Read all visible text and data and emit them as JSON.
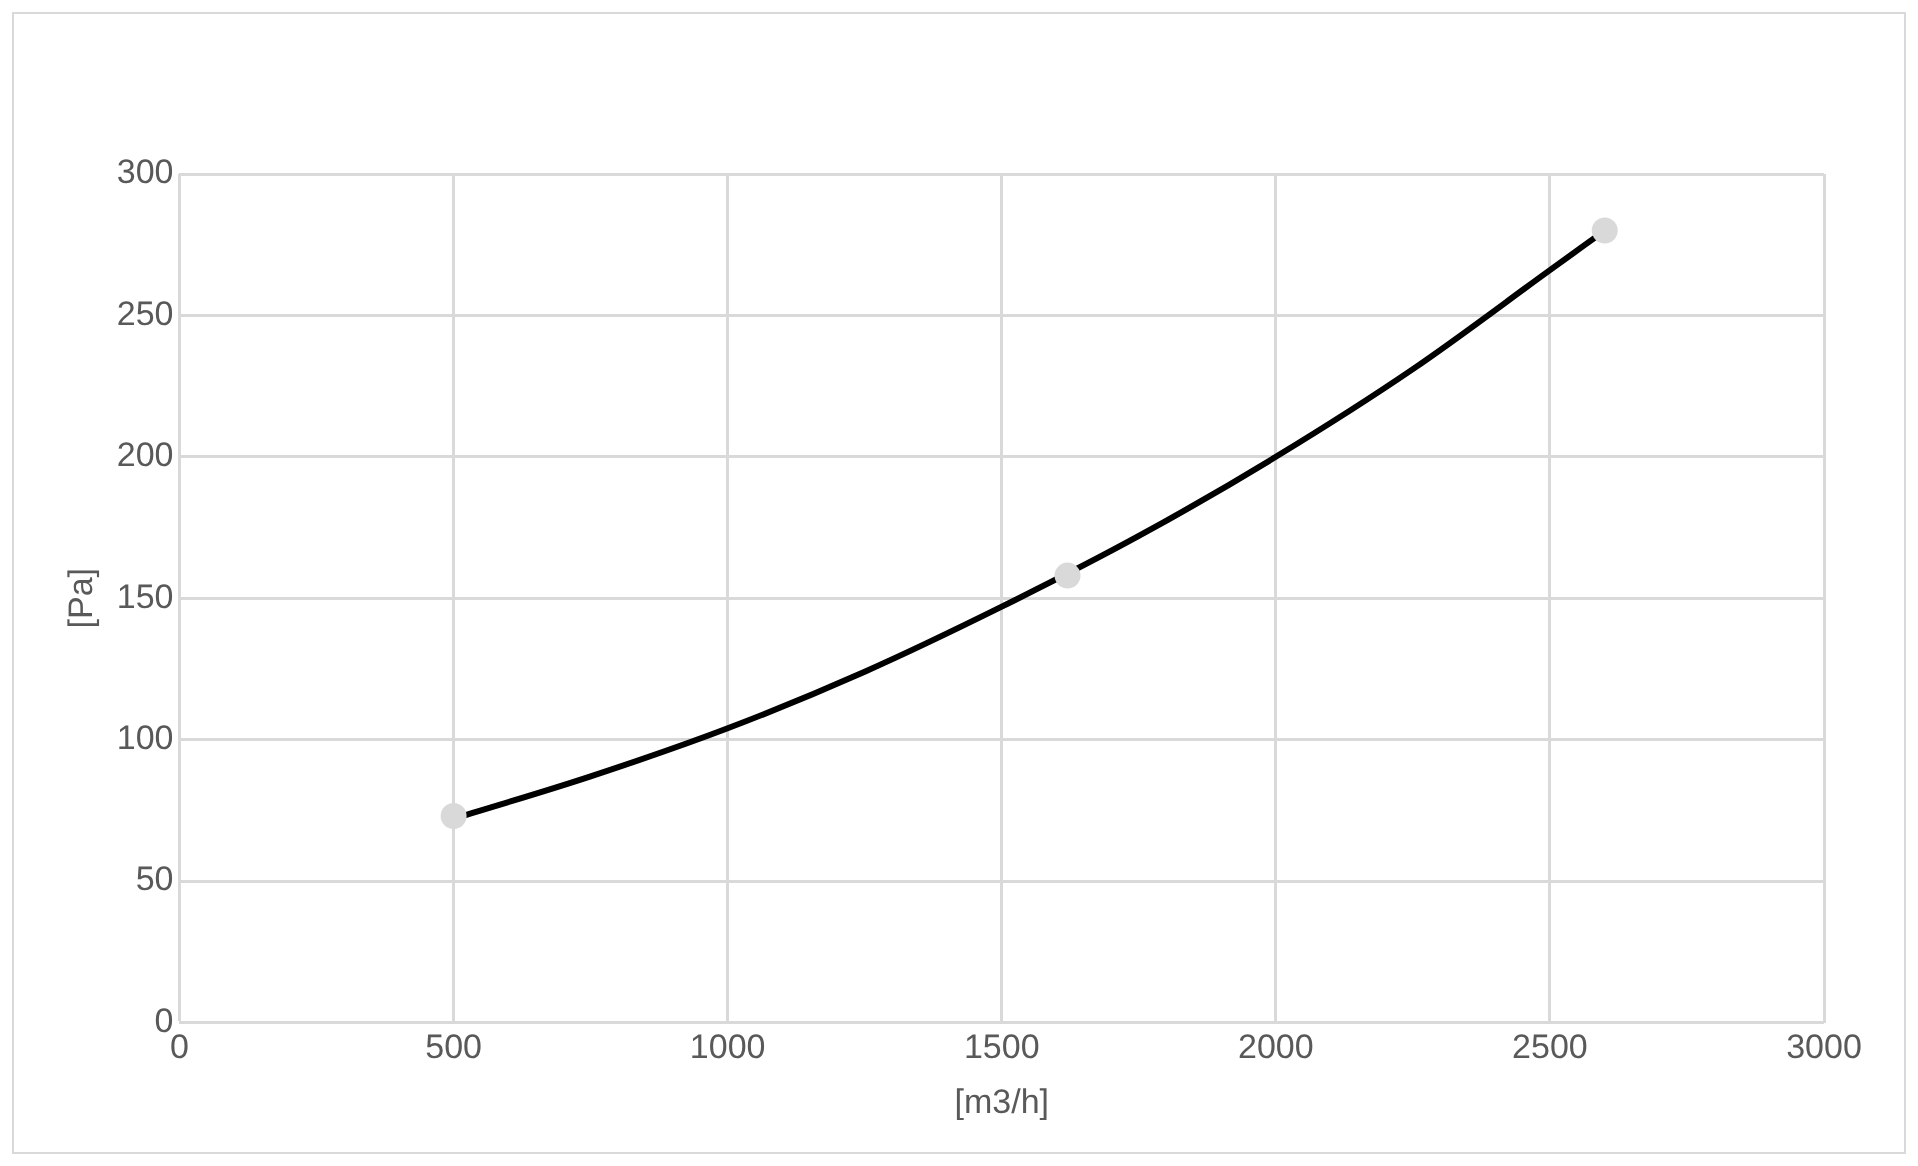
{
  "chart_data": {
    "type": "scatter",
    "xlabel": "[m3/h]",
    "ylabel": "[Pa]",
    "series": [
      {
        "color": "#d9d9d9",
        "x": [
          500,
          1620,
          2600
        ],
        "values": [
          73,
          158,
          280
        ],
        "marker": "circle"
      },
      {
        "type": "line",
        "color": "#000000",
        "x": [
          500,
          750,
          1000,
          1250,
          1500,
          1750,
          2000,
          2250,
          2500,
          2600
        ],
        "values": [
          72,
          87,
          104,
          124,
          147,
          172,
          200,
          231,
          266,
          280
        ],
        "marker": "none"
      }
    ],
    "xlim": [
      0,
      3000
    ],
    "xticks": [
      0,
      500,
      1000,
      1500,
      2000,
      2500,
      3000
    ],
    "ylim": [
      0,
      300
    ],
    "yticks": [
      0,
      50,
      100,
      150,
      200,
      250,
      300
    ],
    "grid": true,
    "legend": false
  }
}
